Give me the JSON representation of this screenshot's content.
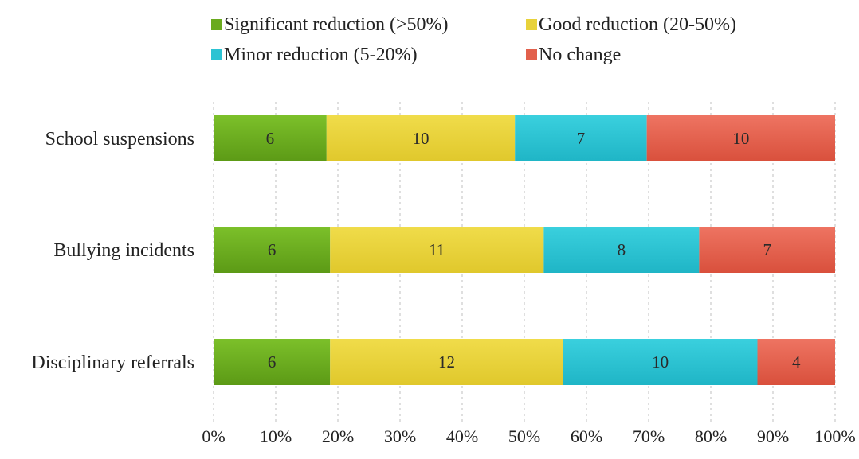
{
  "chart_data": {
    "type": "bar",
    "orientation": "horizontal",
    "stacking": "percent",
    "categories": [
      "School suspensions",
      "Bullying incidents",
      "Disciplinary referrals"
    ],
    "series": [
      {
        "name": "Significant reduction (>50%)",
        "color": "#6aaa1e",
        "values": [
          6,
          6,
          6
        ]
      },
      {
        "name": "Good reduction (20-50%)",
        "color": "#e8d23a",
        "values": [
          10,
          11,
          12
        ]
      },
      {
        "name": "Minor reduction (5-20%)",
        "color": "#2cc3d3",
        "values": [
          7,
          8,
          10
        ]
      },
      {
        "name": "No change",
        "color": "#e2604c",
        "values": [
          10,
          7,
          4
        ]
      }
    ],
    "xlim": [
      0,
      100
    ],
    "xticks": [
      "0%",
      "10%",
      "20%",
      "30%",
      "40%",
      "50%",
      "60%",
      "70%",
      "80%",
      "90%",
      "100%"
    ],
    "grid": "vertical dashed",
    "legend_position": "top",
    "title": "",
    "xlabel": "",
    "ylabel": ""
  }
}
